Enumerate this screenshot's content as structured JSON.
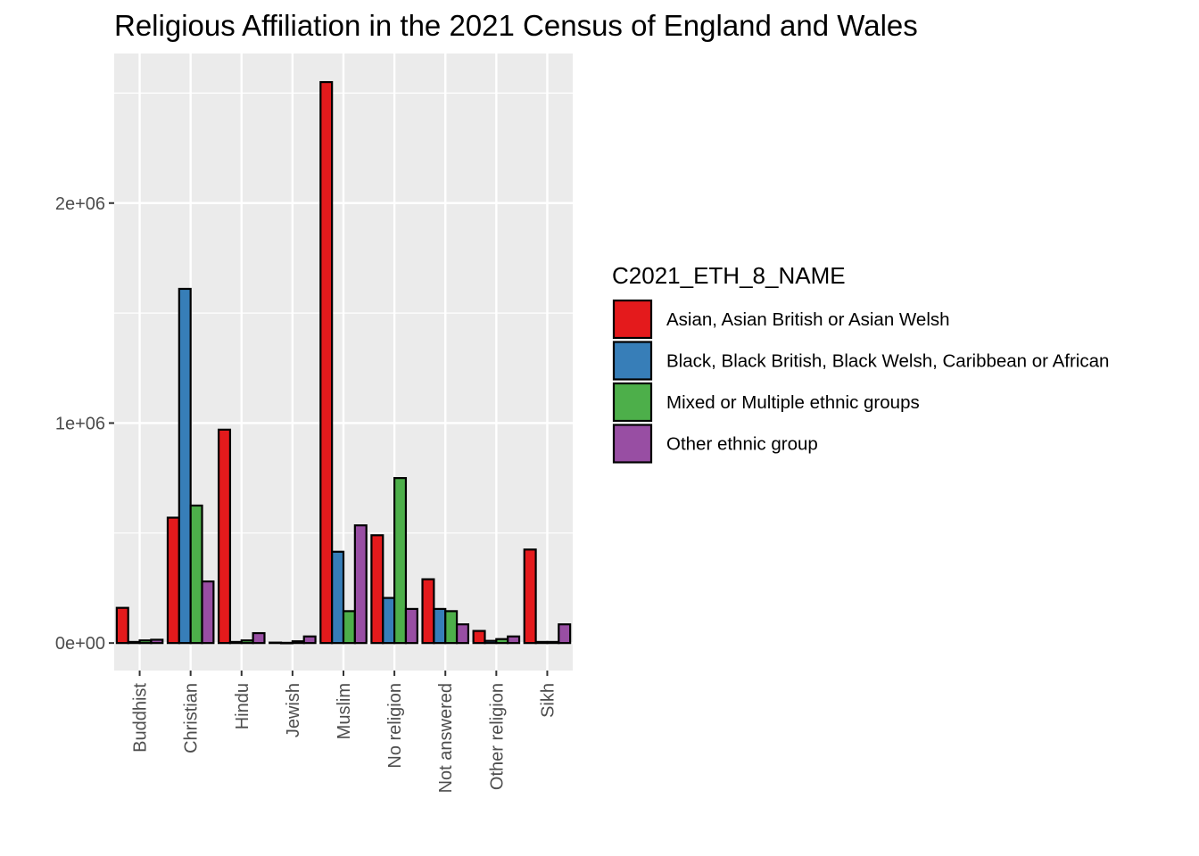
{
  "chart_data": {
    "type": "bar",
    "title": "Religious Affiliation in the 2021 Census of England and Wales",
    "xlabel": "",
    "ylabel": "",
    "categories": [
      "Buddhist",
      "Christian",
      "Hindu",
      "Jewish",
      "Muslim",
      "No religion",
      "Not answered",
      "Other religion",
      "Sikh"
    ],
    "y_ticks": [
      0,
      1000000,
      2000000
    ],
    "y_tick_labels": [
      "0e+00",
      "1e+06",
      "2e+06"
    ],
    "ylim": [
      -125000,
      2680000
    ],
    "grid": true,
    "legend": {
      "title": "C2021_ETH_8_NAME",
      "position": "right"
    },
    "series": [
      {
        "name": "Asian, Asian British or Asian Welsh",
        "color": "#e41a1c",
        "values": [
          160000,
          570000,
          970000,
          2000,
          2550000,
          490000,
          290000,
          55000,
          425000
        ]
      },
      {
        "name": "Black, Black British, Black Welsh, Caribbean or African",
        "color": "#377eb8",
        "values": [
          5000,
          1610000,
          5000,
          1000,
          415000,
          205000,
          155000,
          10000,
          5000
        ]
      },
      {
        "name": "Mixed or Multiple ethnic groups",
        "color": "#4daf4a",
        "values": [
          12000,
          625000,
          12000,
          8000,
          145000,
          750000,
          145000,
          18000,
          5000
        ]
      },
      {
        "name": "Other ethnic group",
        "color": "#984ea3",
        "values": [
          15000,
          280000,
          45000,
          30000,
          535000,
          155000,
          85000,
          30000,
          85000
        ]
      }
    ]
  }
}
